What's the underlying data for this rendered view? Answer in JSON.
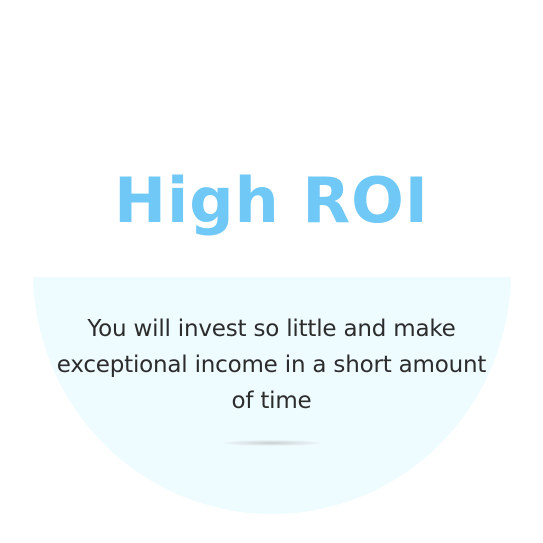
{
  "feature": {
    "title": "High ROI",
    "description": "You will invest so little and make exceptional income in a short amount of time"
  },
  "colors": {
    "title": "#6fc8f6",
    "circle_background": "#eefbff",
    "text": "#2c2c2c"
  }
}
